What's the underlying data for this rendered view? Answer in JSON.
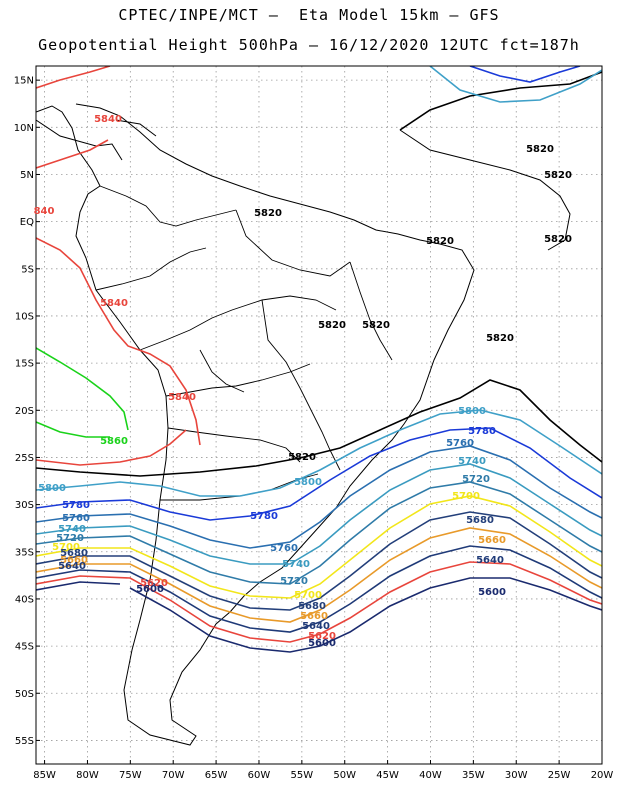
{
  "title_line1": "CPTEC/INPE/MCT –  Eta Model 15km – GFS",
  "title_line2": "Geopotential Height 500hPa – 16/12/2020 12UTC fct=187h",
  "lat_labels": [
    "15N",
    "10N",
    "5N",
    "EQ",
    "5S",
    "10S",
    "15S",
    "20S",
    "25S",
    "30S",
    "35S",
    "40S",
    "45S",
    "50S",
    "55S"
  ],
  "lon_labels": [
    "85W",
    "80W",
    "75W",
    "70W",
    "65W",
    "60W",
    "55W",
    "50W",
    "45W",
    "40W",
    "35W",
    "30W",
    "25W",
    "20W"
  ],
  "contour_colors": {
    "5600": "#1a2a6e",
    "5620": "#e8453c",
    "5640": "#1f3a78",
    "5660": "#e89a2a",
    "5680": "#233f7a",
    "5700": "#f2e61a",
    "5720": "#2f7ba8",
    "5740": "#3a9bc0",
    "5760": "#2a6fb0",
    "5780": "#1a3ad8",
    "5800": "#3fa0c8",
    "5820": "#000000",
    "5840": "#e8453c",
    "5860": "#1ad21a"
  },
  "contour_labels": [
    {
      "text": "5840",
      "color": "5840"
    },
    {
      "text": "840",
      "color": "5840"
    },
    {
      "text": "5840",
      "color": "5840"
    },
    {
      "text": "5840",
      "color": "5840"
    },
    {
      "text": "5860",
      "color": "5860"
    },
    {
      "text": "5820",
      "color": "5820"
    },
    {
      "text": "5820",
      "color": "5820"
    },
    {
      "text": "5820",
      "color": "5820"
    },
    {
      "text": "5820",
      "color": "5820"
    },
    {
      "text": "5820",
      "color": "5820"
    },
    {
      "text": "5820",
      "color": "5820"
    },
    {
      "text": "5820",
      "color": "5820"
    },
    {
      "text": "5820",
      "color": "5820"
    },
    {
      "text": "5820",
      "color": "5820"
    },
    {
      "text": "5800",
      "color": "5800"
    },
    {
      "text": "5800",
      "color": "5800"
    },
    {
      "text": "5800",
      "color": "5800"
    },
    {
      "text": "5780",
      "color": "5780"
    },
    {
      "text": "5780",
      "color": "5780"
    },
    {
      "text": "5780",
      "color": "5780"
    },
    {
      "text": "5760",
      "color": "5760"
    },
    {
      "text": "5760",
      "color": "5760"
    },
    {
      "text": "5760",
      "color": "5760"
    },
    {
      "text": "5740",
      "color": "5740"
    },
    {
      "text": "5740",
      "color": "5740"
    },
    {
      "text": "5740",
      "color": "5740"
    },
    {
      "text": "5720",
      "color": "5720"
    },
    {
      "text": "5720",
      "color": "5720"
    },
    {
      "text": "5720",
      "color": "5720"
    },
    {
      "text": "5700",
      "color": "5700"
    },
    {
      "text": "5700",
      "color": "5700"
    },
    {
      "text": "5700",
      "color": "5700"
    },
    {
      "text": "5680",
      "color": "5680"
    },
    {
      "text": "5680",
      "color": "5680"
    },
    {
      "text": "5680",
      "color": "5680"
    },
    {
      "text": "5660",
      "color": "5660"
    },
    {
      "text": "5660",
      "color": "5660"
    },
    {
      "text": "5660",
      "color": "5660"
    },
    {
      "text": "5640",
      "color": "5640"
    },
    {
      "text": "5640",
      "color": "5640"
    },
    {
      "text": "5640",
      "color": "5640"
    },
    {
      "text": "5620",
      "color": "5620"
    },
    {
      "text": "5620",
      "color": "5620"
    },
    {
      "text": "5600",
      "color": "5600"
    },
    {
      "text": "5600",
      "color": "5600"
    },
    {
      "text": "5600",
      "color": "5600"
    }
  ]
}
